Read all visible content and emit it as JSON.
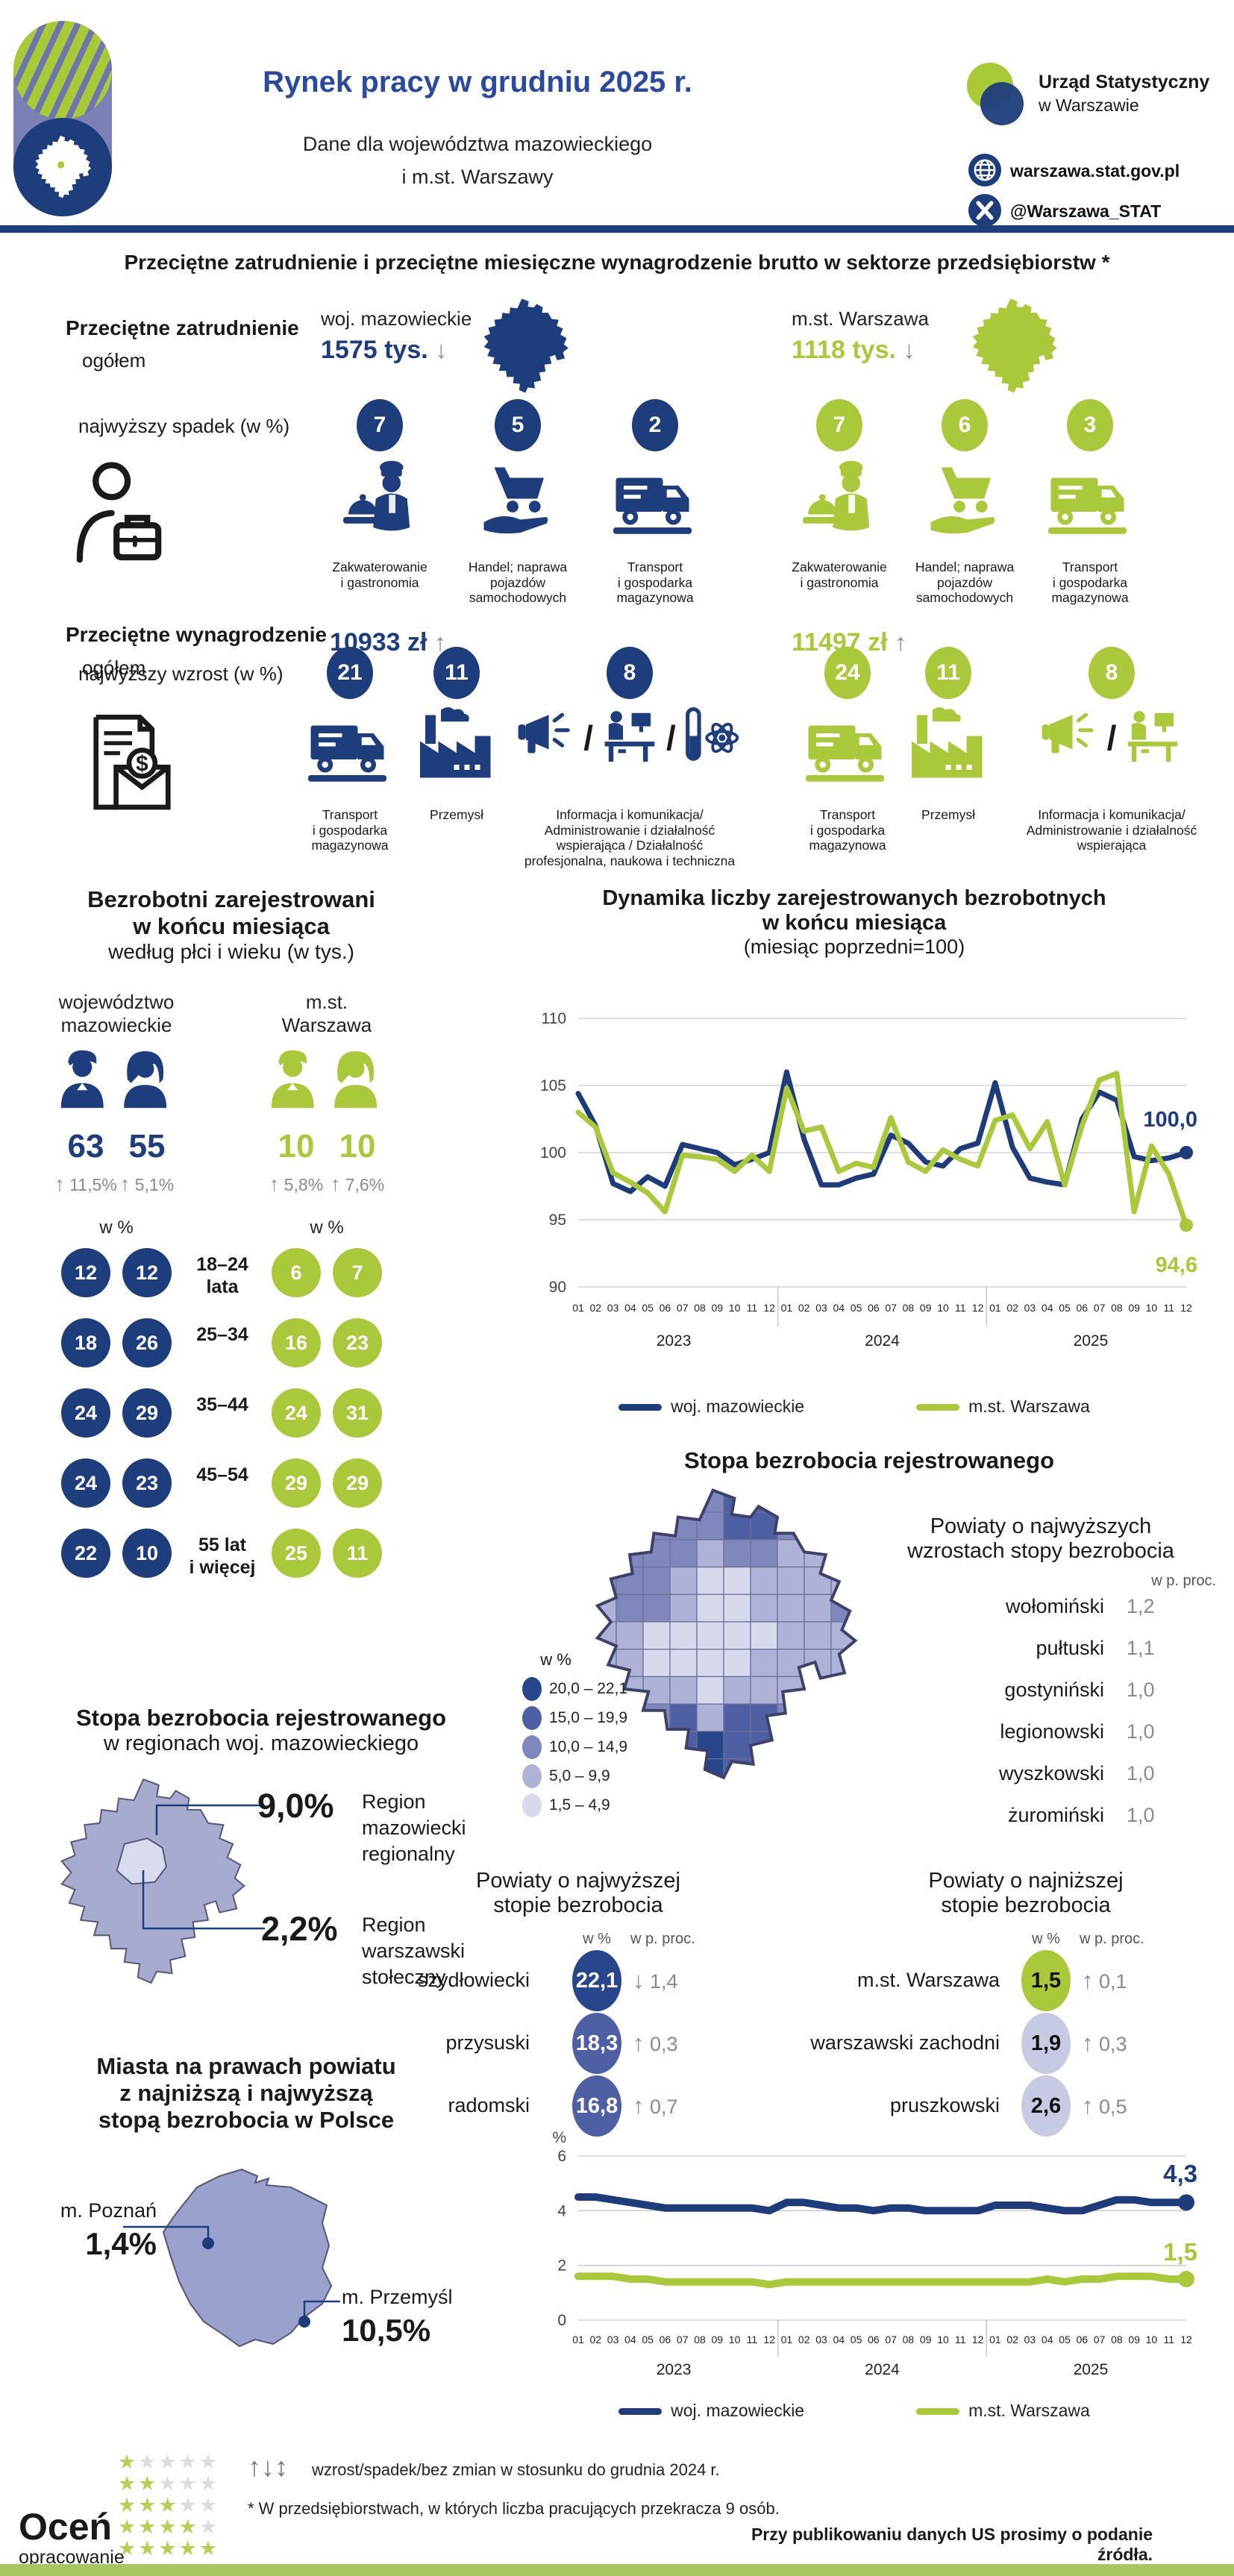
{
  "header": {
    "title": "Rynek pracy w grudniu 2025 r.",
    "subtitle": [
      "Dane dla województwa mazowieckiego",
      "i m.st. Warszawy"
    ],
    "org_name": [
      "Urząd Statystyczny",
      "w Warszawie"
    ],
    "website": "warszawa.stat.gov.pl",
    "social": "@Warszawa_STAT"
  },
  "colors": {
    "navy": "#1e3d7c",
    "title_blue": "#2b4a9e",
    "green": "#a9c93a",
    "gray": "#8a8a8a",
    "map_shades": [
      "#27468b",
      "#4f5fa4",
      "#8087bd",
      "#adb2d6",
      "#d7d9ec"
    ],
    "poland_fill": "#9aa1cc",
    "region_fill": "#a7abd0",
    "region_capital_fill": "#d9dbee",
    "list_light": "#c6cae3"
  },
  "section_employment": {
    "title": "Przeciętne zatrudnienie i przeciętne miesięczne wynagrodzenie brutto w sektorze przedsiębiorstw *",
    "employment_label": [
      "Przeciętne zatrudnienie",
      "ogółem"
    ],
    "decline_label": "najwyższy spadek (w %)",
    "wage_label": [
      "Przeciętne wynagrodzenie",
      "ogółem"
    ],
    "growth_label": "najwyższy wzrost (w %)",
    "mazowieckie": {
      "name": "woj. mazowieckie",
      "employment_total": "1575 tys.",
      "employment_arrow": "↓",
      "wage_total": "10933 zł",
      "wage_arrow": "↑",
      "declines": [
        {
          "value": "7",
          "icon": "hospitality-icon",
          "label": "Zakwaterowanie\ni gastronomia"
        },
        {
          "value": "5",
          "icon": "trade-icon",
          "label": "Handel; naprawa\npojazdów\nsamochodowych"
        },
        {
          "value": "2",
          "icon": "transport-icon",
          "label": "Transport\ni gospodarka\nmagazynowa"
        }
      ],
      "growths": [
        {
          "value": "21",
          "icon": "transport-icon",
          "label": "Transport\ni gospodarka\nmagazynowa"
        },
        {
          "value": "11",
          "icon": "industry-icon",
          "label": "Przemysł"
        },
        {
          "value": "8",
          "icon": "info-combo-lab",
          "label": "Informacja i komunikacja/\nAdministrowanie i działalność\nwspierająca / Działalność\nprofesjonalna, naukowa i techniczna"
        }
      ]
    },
    "warszawa": {
      "name": "m.st. Warszawa",
      "employment_total": "1118 tys.",
      "employment_arrow": "↓",
      "wage_total": "11497 zł",
      "wage_arrow": "↑",
      "declines": [
        {
          "value": "7",
          "icon": "hospitality-icon",
          "label": "Zakwaterowanie\ni gastronomia"
        },
        {
          "value": "6",
          "icon": "trade-icon",
          "label": "Handel; naprawa\npojazdów\nsamochodowych"
        },
        {
          "value": "3",
          "icon": "transport-icon",
          "label": "Transport\ni gospodarka\nmagazynowa"
        }
      ],
      "growths": [
        {
          "value": "24",
          "icon": "transport-icon",
          "label": "Transport\ni gospodarka\nmagazynowa"
        },
        {
          "value": "11",
          "icon": "industry-icon",
          "label": "Przemysł"
        },
        {
          "value": "8",
          "icon": "info-combo",
          "label": "Informacja i komunikacja/\nAdministrowanie i działalność\nwspierająca"
        }
      ]
    }
  },
  "unemployed": {
    "title": [
      "Bezrobotni zarejestrowani",
      "w końcu miesiąca",
      "według płci i wieku (w tys.)"
    ],
    "percent_label": "w %",
    "groups": [
      {
        "name": "województwo\nmazowieckie",
        "men": "63",
        "men_arrow": "↑",
        "men_change": "11,5%",
        "women": "55",
        "women_arrow": "↑",
        "women_change": "5,1%"
      },
      {
        "name": "m.st.\nWarszawa",
        "men": "10",
        "men_arrow": "↑",
        "men_change": "5,8%",
        "women": "10",
        "women_arrow": "↑",
        "women_change": "7,6%"
      }
    ],
    "age_rows": [
      {
        "maz": [
          "12",
          "12"
        ],
        "age": "18–24\nlata",
        "waw": [
          "6",
          "7"
        ]
      },
      {
        "maz": [
          "18",
          "26"
        ],
        "age": "25–34",
        "waw": [
          "16",
          "23"
        ]
      },
      {
        "maz": [
          "24",
          "29"
        ],
        "age": "35–44",
        "waw": [
          "24",
          "31"
        ]
      },
      {
        "maz": [
          "24",
          "23"
        ],
        "age": "45–54",
        "waw": [
          "29",
          "29"
        ]
      },
      {
        "maz": [
          "22",
          "10"
        ],
        "age": "55 lat\ni więcej",
        "waw": [
          "25",
          "11"
        ]
      }
    ]
  },
  "rate_map": {
    "title": "Stopa bezrobocia rejestrowanego",
    "legend_title": "w %",
    "legend": [
      "20,0 – 22,1",
      "15,0 – 19,9",
      "10,0 – 14,9",
      "5,0 –  9,9",
      "1,5 –  4,9"
    ],
    "increase_panel": {
      "title": [
        "Powiaty o najwyższych",
        "wzrostach stopy bezrobocia"
      ],
      "unit": "w p. proc.",
      "rows": [
        {
          "name": "wołomiński",
          "value": "1,2"
        },
        {
          "name": "pułtuski",
          "value": "1,1"
        },
        {
          "name": "gostyniński",
          "value": "1,0"
        },
        {
          "name": "legionowski",
          "value": "1,0"
        },
        {
          "name": "wyszkowski",
          "value": "1,0"
        },
        {
          "name": "żuromiński",
          "value": "1,0"
        }
      ]
    },
    "highest_panel": {
      "title": [
        "Powiaty o najwyższej",
        "stopie bezrobocia"
      ],
      "col1": "w %",
      "col2": "w p. proc.",
      "rows": [
        {
          "name": "szydłowiecki",
          "value": "22,1",
          "arrow": "↓",
          "change": "1,4",
          "shade": "dark"
        },
        {
          "name": "przysuski",
          "value": "18,3",
          "arrow": "↑",
          "change": "0,3",
          "shade": "mid"
        },
        {
          "name": "radomski",
          "value": "16,8",
          "arrow": "↑",
          "change": "0,7",
          "shade": "mid"
        }
      ]
    },
    "lowest_panel": {
      "title": [
        "Powiaty o najniższej",
        "stopie bezrobocia"
      ],
      "col1": "w %",
      "col2": "w p. proc.",
      "rows": [
        {
          "name": "m.st. Warszawa",
          "value": "1,5",
          "arrow": "↑",
          "change": "0,1",
          "shade": "green"
        },
        {
          "name": "warszawski zachodni",
          "value": "1,9",
          "arrow": "↑",
          "change": "0,3",
          "shade": "light"
        },
        {
          "name": "pruszkowski",
          "value": "2,6",
          "arrow": "↑",
          "change": "0,5",
          "shade": "light"
        }
      ]
    }
  },
  "regions": {
    "title": [
      "Stopa bezrobocia rejestrowanego",
      "w regionach woj. mazowieckiego"
    ],
    "items": [
      {
        "value": "9,0%",
        "label": "Region\nmazowiecki\nregionalny"
      },
      {
        "value": "2,2%",
        "label": "Region\nwarszawski\nstołeczny"
      }
    ]
  },
  "cities": {
    "title": [
      "Miasta na prawach powiatu",
      "z najniższą i najwyższą",
      "stopą bezrobocia w Polsce"
    ],
    "lowest": {
      "name": "m. Poznań",
      "value": "1,4%"
    },
    "highest": {
      "name": "m. Przemyśl",
      "value": "10,5%"
    }
  },
  "chart_data": [
    {
      "id": "dynamics",
      "type": "line",
      "title": [
        "Dynamika liczby zarejestrowanych bezrobotnych",
        "w końcu miesiąca",
        "(miesiąc poprzedni=100)"
      ],
      "ylim": [
        90,
        110
      ],
      "yticks": [
        110,
        105,
        100,
        95,
        90
      ],
      "grid": true,
      "legend_position": "bottom",
      "months": [
        "01",
        "02",
        "03",
        "04",
        "05",
        "06",
        "07",
        "08",
        "09",
        "10",
        "11",
        "12"
      ],
      "years": [
        "2023",
        "2024",
        "2025"
      ],
      "series": [
        {
          "name": "woj. mazowieckie",
          "color": "#1e3c7c",
          "end_label": "100,0",
          "values": [
            104.4,
            102.0,
            97.7,
            97.1,
            98.2,
            97.5,
            100.6,
            100.3,
            100.0,
            99.1,
            99.5,
            100.0,
            106.0,
            101.0,
            97.6,
            97.6,
            98.1,
            98.4,
            101.3,
            100.7,
            99.3,
            99.0,
            100.3,
            100.7,
            105.2,
            100.4,
            98.1,
            97.8,
            97.6,
            102.5,
            104.5,
            103.9,
            99.7,
            99.4,
            99.6,
            100.0
          ]
        },
        {
          "name": "m.st. Warszawa",
          "color": "#a9c93a",
          "end_label": "94,6",
          "values": [
            103.0,
            101.9,
            98.5,
            97.8,
            97.0,
            95.6,
            99.8,
            99.7,
            99.5,
            98.6,
            99.8,
            98.6,
            104.8,
            101.6,
            101.9,
            98.6,
            99.2,
            98.9,
            102.6,
            99.3,
            98.6,
            100.2,
            99.5,
            99.0,
            102.4,
            102.8,
            100.3,
            102.3,
            97.6,
            102.0,
            105.4,
            105.9,
            95.6,
            100.5,
            98.4,
            94.6
          ]
        }
      ]
    },
    {
      "id": "rate",
      "type": "line",
      "ylabel": "%",
      "ylim": [
        0,
        6
      ],
      "yticks": [
        6,
        4,
        2,
        0
      ],
      "grid": true,
      "legend_position": "bottom",
      "months": [
        "01",
        "02",
        "03",
        "04",
        "05",
        "06",
        "07",
        "08",
        "09",
        "10",
        "11",
        "12"
      ],
      "years": [
        "2023",
        "2024",
        "2025"
      ],
      "series": [
        {
          "name": "woj. mazowieckie",
          "color": "#1e3c7c",
          "end_label": "4,3",
          "values": [
            4.5,
            4.5,
            4.4,
            4.3,
            4.2,
            4.1,
            4.1,
            4.1,
            4.1,
            4.1,
            4.1,
            4.0,
            4.3,
            4.3,
            4.2,
            4.1,
            4.1,
            4.0,
            4.1,
            4.1,
            4.0,
            4.0,
            4.0,
            4.0,
            4.2,
            4.2,
            4.2,
            4.1,
            4.0,
            4.0,
            4.2,
            4.4,
            4.4,
            4.3,
            4.3,
            4.3
          ]
        },
        {
          "name": "m.st. Warszawa",
          "color": "#a9c93a",
          "end_label": "1,5",
          "values": [
            1.6,
            1.6,
            1.6,
            1.5,
            1.5,
            1.4,
            1.4,
            1.4,
            1.4,
            1.4,
            1.4,
            1.3,
            1.4,
            1.4,
            1.4,
            1.4,
            1.4,
            1.4,
            1.4,
            1.4,
            1.4,
            1.4,
            1.4,
            1.4,
            1.4,
            1.4,
            1.4,
            1.5,
            1.4,
            1.5,
            1.5,
            1.6,
            1.6,
            1.6,
            1.5,
            1.5
          ]
        }
      ]
    }
  ],
  "footer": {
    "arrows": "↑↓↕",
    "arrows_note": "wzrost/spadek/bez zmian w stosunku do grudnia 2024 r.",
    "footnote": "* W przedsiębiorstwach, w których liczba pracujących przekracza 9 osób.",
    "rate_cta": [
      "Oceń",
      "opracowanie"
    ],
    "source_note": "Przy publikowaniu danych US prosimy o podanie źródła."
  }
}
